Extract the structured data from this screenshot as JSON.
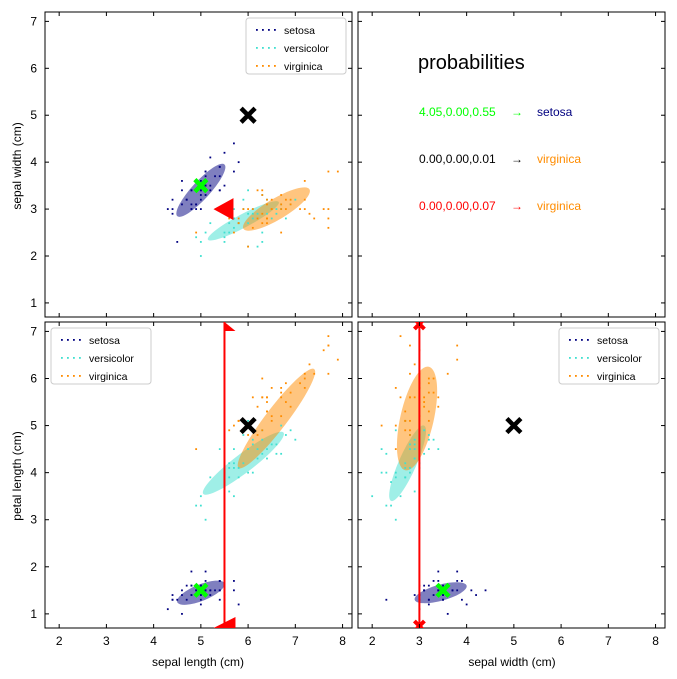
{
  "chart_data": {
    "type": "scatter",
    "classes": [
      {
        "name": "setosa",
        "color": "#000080"
      },
      {
        "name": "versicolor",
        "color": "#40e0d0"
      },
      {
        "name": "virginica",
        "color": "#ff8c00"
      }
    ],
    "features": [
      "sepal length (cm)",
      "sepal width (cm)",
      "petal length (cm)"
    ],
    "axes": {
      "sepal_length": {
        "label": "sepal length (cm)",
        "range": [
          1.7,
          8.2
        ],
        "ticks": [
          2,
          3,
          4,
          5,
          6,
          7,
          8
        ]
      },
      "sepal_width": {
        "label": "sepal width (cm)",
        "range": [
          0.7,
          7.2
        ],
        "ticks": [
          1,
          2,
          3,
          4,
          5,
          6,
          7
        ]
      },
      "petal_length": {
        "label": "petal length (cm)",
        "range": [
          0.7,
          7.2
        ],
        "ticks": [
          1,
          2,
          3,
          4,
          5,
          6,
          7
        ]
      },
      "sepal_width_x": {
        "label": "sepal width (cm)",
        "range": [
          1.7,
          8.2
        ],
        "ticks": [
          2,
          3,
          4,
          5,
          6,
          7,
          8
        ]
      }
    },
    "points": {
      "setosa": [
        [
          5.1,
          3.5,
          1.4
        ],
        [
          4.9,
          3.0,
          1.4
        ],
        [
          4.7,
          3.2,
          1.3
        ],
        [
          4.6,
          3.1,
          1.5
        ],
        [
          5.0,
          3.6,
          1.4
        ],
        [
          5.4,
          3.9,
          1.7
        ],
        [
          4.6,
          3.4,
          1.4
        ],
        [
          5.0,
          3.4,
          1.5
        ],
        [
          4.4,
          2.9,
          1.4
        ],
        [
          4.9,
          3.1,
          1.5
        ],
        [
          5.4,
          3.7,
          1.5
        ],
        [
          4.8,
          3.4,
          1.6
        ],
        [
          4.8,
          3.0,
          1.4
        ],
        [
          4.3,
          3.0,
          1.1
        ],
        [
          5.8,
          4.0,
          1.2
        ],
        [
          5.7,
          4.4,
          1.5
        ],
        [
          5.4,
          3.9,
          1.3
        ],
        [
          5.1,
          3.5,
          1.4
        ],
        [
          5.7,
          3.8,
          1.7
        ],
        [
          5.1,
          3.8,
          1.5
        ],
        [
          5.4,
          3.4,
          1.7
        ],
        [
          5.1,
          3.7,
          1.5
        ],
        [
          4.6,
          3.6,
          1.0
        ],
        [
          5.1,
          3.3,
          1.7
        ],
        [
          4.8,
          3.4,
          1.9
        ],
        [
          5.0,
          3.0,
          1.6
        ],
        [
          5.0,
          3.4,
          1.6
        ],
        [
          5.2,
          3.5,
          1.5
        ],
        [
          5.2,
          3.4,
          1.4
        ],
        [
          4.7,
          3.2,
          1.6
        ],
        [
          4.8,
          3.1,
          1.6
        ],
        [
          5.4,
          3.4,
          1.5
        ],
        [
          5.2,
          4.1,
          1.5
        ],
        [
          5.5,
          4.2,
          1.4
        ],
        [
          4.9,
          3.1,
          1.5
        ],
        [
          5.0,
          3.2,
          1.2
        ],
        [
          5.5,
          3.5,
          1.3
        ],
        [
          4.4,
          3.0,
          1.3
        ],
        [
          5.1,
          3.4,
          1.5
        ],
        [
          5.0,
          3.5,
          1.3
        ],
        [
          4.5,
          2.3,
          1.3
        ],
        [
          4.4,
          3.2,
          1.3
        ],
        [
          5.0,
          3.5,
          1.6
        ],
        [
          5.1,
          3.8,
          1.9
        ],
        [
          4.8,
          3.0,
          1.4
        ],
        [
          5.3,
          3.7,
          1.5
        ],
        [
          5.0,
          3.3,
          1.4
        ]
      ],
      "versicolor": [
        [
          7.0,
          3.2,
          4.7
        ],
        [
          6.4,
          3.2,
          4.5
        ],
        [
          6.9,
          3.1,
          4.9
        ],
        [
          5.5,
          2.3,
          4.0
        ],
        [
          6.5,
          2.8,
          4.6
        ],
        [
          5.7,
          2.8,
          4.5
        ],
        [
          6.3,
          3.3,
          4.7
        ],
        [
          4.9,
          2.4,
          3.3
        ],
        [
          6.6,
          2.9,
          4.6
        ],
        [
          5.2,
          2.7,
          3.9
        ],
        [
          5.0,
          2.0,
          3.5
        ],
        [
          5.9,
          3.0,
          4.2
        ],
        [
          6.0,
          2.2,
          4.0
        ],
        [
          6.1,
          2.9,
          4.7
        ],
        [
          5.6,
          2.9,
          3.6
        ],
        [
          6.7,
          3.1,
          4.4
        ],
        [
          5.8,
          2.7,
          4.1
        ],
        [
          6.2,
          2.2,
          4.5
        ],
        [
          5.6,
          2.5,
          3.9
        ],
        [
          5.9,
          3.2,
          4.8
        ],
        [
          6.1,
          2.8,
          4.0
        ],
        [
          6.3,
          2.5,
          4.9
        ],
        [
          6.4,
          2.9,
          4.3
        ],
        [
          6.6,
          3.0,
          4.4
        ],
        [
          6.8,
          2.8,
          4.8
        ],
        [
          6.7,
          3.0,
          5.0
        ],
        [
          6.0,
          2.9,
          4.5
        ],
        [
          5.7,
          2.6,
          3.5
        ],
        [
          5.5,
          2.4,
          3.8
        ],
        [
          5.8,
          2.7,
          3.9
        ],
        [
          6.0,
          2.7,
          5.1
        ],
        [
          5.4,
          3.0,
          4.5
        ],
        [
          6.0,
          3.4,
          4.5
        ],
        [
          6.3,
          2.3,
          4.4
        ],
        [
          5.6,
          3.0,
          4.1
        ],
        [
          5.5,
          2.5,
          4.0
        ],
        [
          6.1,
          3.0,
          4.6
        ],
        [
          5.0,
          2.3,
          3.3
        ],
        [
          5.6,
          2.7,
          4.2
        ],
        [
          5.7,
          3.0,
          4.2
        ],
        [
          6.2,
          2.9,
          4.3
        ],
        [
          5.1,
          2.5,
          3.0
        ],
        [
          5.7,
          2.8,
          4.1
        ]
      ],
      "virginica": [
        [
          6.3,
          3.3,
          6.0
        ],
        [
          5.8,
          2.7,
          5.1
        ],
        [
          7.1,
          3.0,
          5.9
        ],
        [
          6.3,
          2.9,
          5.6
        ],
        [
          6.5,
          3.0,
          5.8
        ],
        [
          7.6,
          3.0,
          6.6
        ],
        [
          4.9,
          2.5,
          4.5
        ],
        [
          7.3,
          2.9,
          6.3
        ],
        [
          6.7,
          2.5,
          5.8
        ],
        [
          7.2,
          3.6,
          6.1
        ],
        [
          6.5,
          3.2,
          5.1
        ],
        [
          6.4,
          2.7,
          5.3
        ],
        [
          6.8,
          3.0,
          5.5
        ],
        [
          5.7,
          2.5,
          5.0
        ],
        [
          5.8,
          2.8,
          5.1
        ],
        [
          6.4,
          3.2,
          5.3
        ],
        [
          7.7,
          3.8,
          6.7
        ],
        [
          7.7,
          2.6,
          6.9
        ],
        [
          6.0,
          2.2,
          5.0
        ],
        [
          6.9,
          3.2,
          5.7
        ],
        [
          5.6,
          2.8,
          4.9
        ],
        [
          7.7,
          2.8,
          6.7
        ],
        [
          6.3,
          2.7,
          4.9
        ],
        [
          6.7,
          3.3,
          5.7
        ],
        [
          7.2,
          3.2,
          6.0
        ],
        [
          6.2,
          2.8,
          4.8
        ],
        [
          6.1,
          3.0,
          4.9
        ],
        [
          6.4,
          2.8,
          5.6
        ],
        [
          7.2,
          3.0,
          5.8
        ],
        [
          7.4,
          2.8,
          6.1
        ],
        [
          7.9,
          3.8,
          6.4
        ],
        [
          6.4,
          2.8,
          5.6
        ],
        [
          6.1,
          2.6,
          5.6
        ],
        [
          7.7,
          3.0,
          6.1
        ],
        [
          6.3,
          3.4,
          5.6
        ],
        [
          6.4,
          3.1,
          5.5
        ],
        [
          6.0,
          3.0,
          4.8
        ],
        [
          6.9,
          3.1,
          5.4
        ],
        [
          6.7,
          3.1,
          5.6
        ],
        [
          5.8,
          2.7,
          5.1
        ],
        [
          6.8,
          3.2,
          5.9
        ],
        [
          6.7,
          3.0,
          5.2
        ],
        [
          6.5,
          3.0,
          5.2
        ],
        [
          6.2,
          3.4,
          5.4
        ],
        [
          5.9,
          3.0,
          5.1
        ]
      ]
    },
    "ellipses": {
      "sepal_length_vs_sepal_width": [
        {
          "class": "setosa",
          "center": [
            5.0,
            3.4
          ],
          "axis_points": [
            [
              5.5,
              3.95
            ],
            [
              4.5,
              2.85
            ],
            [
              4.86,
              3.53
            ],
            [
              5.14,
              3.27
            ]
          ]
        },
        {
          "class": "versicolor",
          "center": [
            5.9,
            2.75
          ],
          "axis_points": [
            [
              6.65,
              3.15
            ],
            [
              5.15,
              2.35
            ],
            [
              5.84,
              2.88
            ],
            [
              5.96,
              2.62
            ]
          ]
        },
        {
          "class": "virginica",
          "center": [
            6.6,
            3.0
          ],
          "axis_points": [
            [
              7.3,
              3.42
            ],
            [
              5.9,
              2.58
            ],
            [
              6.5,
              3.2
            ],
            [
              6.7,
              2.8
            ]
          ]
        }
      ],
      "sepal_length_vs_petal_length": [
        {
          "class": "setosa",
          "center": [
            5.0,
            1.45
          ],
          "axis_points": [
            [
              5.5,
              1.65
            ],
            [
              4.5,
              1.25
            ],
            [
              4.96,
              1.62
            ],
            [
              5.04,
              1.28
            ]
          ]
        },
        {
          "class": "versicolor",
          "center": [
            5.9,
            4.2
          ],
          "axis_points": [
            [
              6.75,
              4.85
            ],
            [
              5.05,
              3.55
            ],
            [
              5.78,
              4.36
            ],
            [
              6.02,
              4.04
            ]
          ]
        },
        {
          "class": "virginica",
          "center": [
            6.6,
            5.15
          ],
          "axis_points": [
            [
              7.4,
              6.2
            ],
            [
              5.8,
              4.1
            ],
            [
              6.42,
              5.29
            ],
            [
              6.78,
              5.01
            ]
          ]
        }
      ],
      "sepal_width_vs_petal_length": [
        {
          "class": "setosa",
          "center": [
            3.45,
            1.45
          ],
          "axis_points": [
            [
              4.0,
              1.6
            ],
            [
              2.9,
              1.3
            ],
            [
              3.43,
              1.62
            ],
            [
              3.47,
              1.28
            ]
          ]
        },
        {
          "class": "versicolor",
          "center": [
            2.75,
            4.2
          ],
          "axis_points": [
            [
              3.1,
              5.0
            ],
            [
              2.4,
              3.4
            ],
            [
              2.58,
              4.28
            ],
            [
              2.92,
              4.12
            ]
          ]
        },
        {
          "class": "virginica",
          "center": [
            2.95,
            5.15
          ],
          "axis_points": [
            [
              3.2,
              6.25
            ],
            [
              2.7,
              4.05
            ],
            [
              2.6,
              5.2
            ],
            [
              3.3,
              5.1
            ]
          ]
        }
      ]
    },
    "markers": {
      "black_x": {
        "sepal_length": 6.0,
        "sepal_width": 5.0,
        "petal_length": 5.0
      },
      "green_x": {
        "sepal_length": 5.0,
        "sepal_width": 3.5,
        "petal_length": 1.5
      },
      "red_triangle_top_left": {
        "sepal_length": 5.5,
        "sepal_width": 3.0
      },
      "red_line_sepal_length": 5.5,
      "red_line_sepal_width": 3.0
    },
    "probabilities": {
      "title": "probabilities",
      "rows": [
        {
          "values": "4.05,0.00,0.55",
          "arrow": "→",
          "class": "setosa",
          "value_color": "#00ff00",
          "class_color": "#000080"
        },
        {
          "values": "0.00,0.00,0.01",
          "arrow": "→",
          "class": "virginica",
          "value_color": "#000000",
          "class_color": "#ff8c00"
        },
        {
          "values": "0.00,0.00,0.07",
          "arrow": "→",
          "class": "virginica",
          "value_color": "#ff0000",
          "class_color": "#ff8c00"
        }
      ]
    },
    "legend_placement": [
      "top-right",
      "top-left",
      "top-right"
    ],
    "grid": false
  }
}
